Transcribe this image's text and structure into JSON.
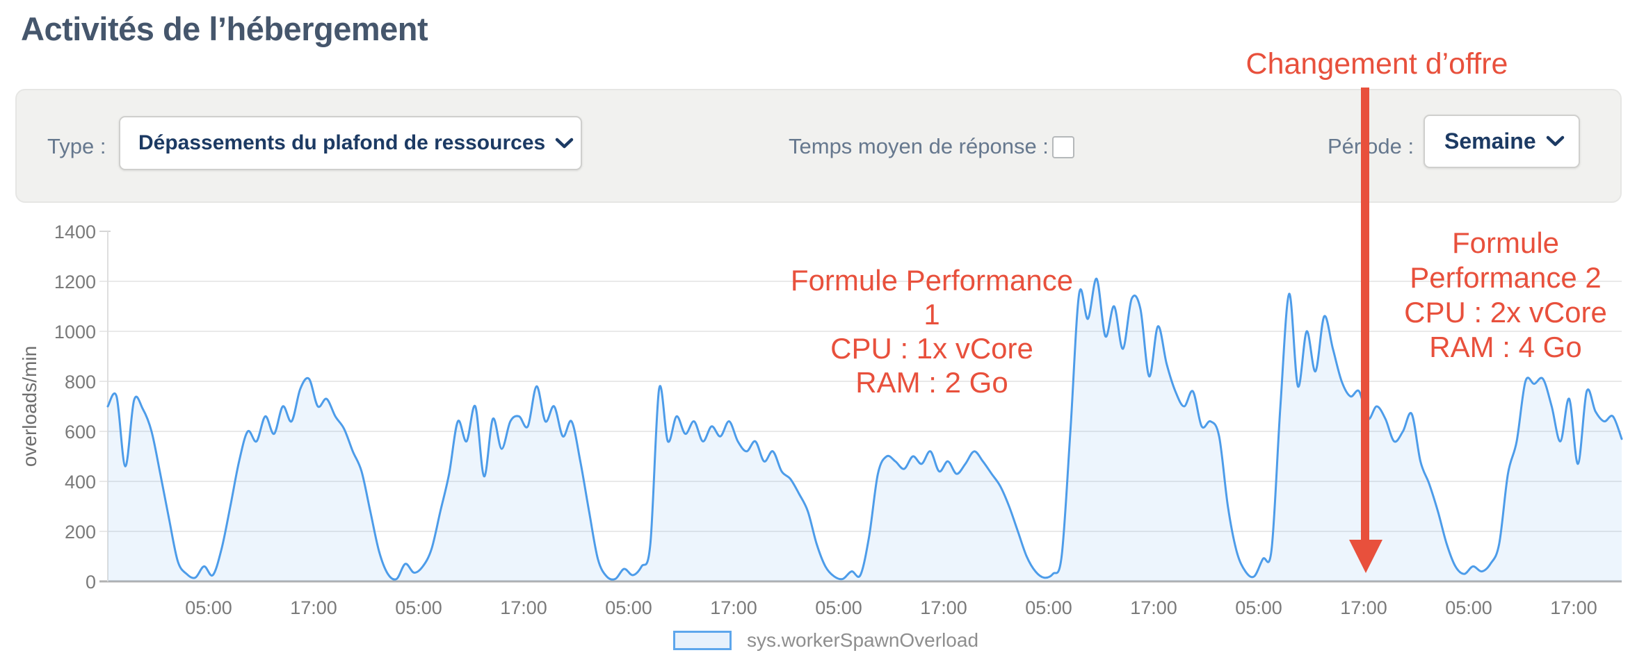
{
  "page": {
    "title": "Activités de l’hébergement"
  },
  "filters": {
    "type_label": "Type :",
    "type_value": "Dépassements du plafond de ressources",
    "response_time_label": "Temps moyen de réponse :",
    "response_time_checked": false,
    "period_label": "Période :",
    "period_value": "Semaine"
  },
  "annotations": {
    "offer_change": "Changement d’offre",
    "arrow_color": "#e8503c",
    "plan1": {
      "lines": [
        "Formule Performance 1",
        "CPU : 1x vCore",
        "RAM : 2 Go"
      ]
    },
    "plan2": {
      "lines": [
        "Formule",
        "Performance 2",
        "CPU : 2x vCore",
        "RAM : 4 Go"
      ]
    }
  },
  "chart_data": {
    "type": "area",
    "title": "",
    "xlabel": "",
    "ylabel": "overloads/min",
    "ylim": [
      0,
      1400
    ],
    "yticks": [
      0,
      200,
      400,
      600,
      800,
      1000,
      1200,
      1400
    ],
    "xtick_labels": [
      "05:00",
      "17:00",
      "05:00",
      "17:00",
      "05:00",
      "17:00",
      "05:00",
      "17:00",
      "05:00",
      "17:00",
      "05:00",
      "17:00",
      "05:00",
      "17:00"
    ],
    "grid": true,
    "legend_position": "bottom-center",
    "legend": [
      {
        "label": "sys.workerSpawnOverload",
        "fill": "#e7f1fc",
        "stroke": "#5da6ec"
      }
    ],
    "series": [
      {
        "name": "sys.workerSpawnOverload",
        "color": "#4d9ce9",
        "area_fill": "rgba(77,156,233,0.10)",
        "x_unit": "hours_across_week",
        "values": [
          700,
          740,
          460,
          725,
          690,
          600,
          430,
          250,
          80,
          30,
          15,
          60,
          25,
          130,
          300,
          480,
          600,
          560,
          660,
          590,
          700,
          640,
          770,
          810,
          700,
          730,
          660,
          610,
          520,
          440,
          280,
          120,
          30,
          10,
          70,
          35,
          60,
          130,
          280,
          430,
          640,
          560,
          700,
          420,
          650,
          530,
          640,
          660,
          620,
          780,
          640,
          700,
          580,
          640,
          480,
          280,
          90,
          20,
          10,
          50,
          25,
          60,
          150,
          770,
          560,
          660,
          590,
          640,
          560,
          620,
          580,
          640,
          560,
          520,
          560,
          480,
          520,
          440,
          410,
          350,
          280,
          150,
          60,
          20,
          10,
          40,
          25,
          180,
          430,
          500,
          480,
          450,
          500,
          470,
          520,
          440,
          480,
          430,
          470,
          520,
          480,
          430,
          380,
          300,
          200,
          100,
          40,
          15,
          30,
          100,
          600,
          1150,
          1050,
          1210,
          980,
          1100,
          930,
          1130,
          1090,
          820,
          1020,
          870,
          760,
          700,
          760,
          620,
          640,
          580,
          300,
          120,
          40,
          20,
          90,
          130,
          700,
          1150,
          780,
          1000,
          840,
          1060,
          930,
          800,
          740,
          760,
          650,
          700,
          650,
          560,
          600,
          670,
          480,
          390,
          280,
          150,
          60,
          30,
          60,
          40,
          70,
          150,
          430,
          560,
          800,
          790,
          810,
          700,
          560,
          730,
          470,
          760,
          680,
          640,
          660,
          570
        ]
      }
    ]
  }
}
